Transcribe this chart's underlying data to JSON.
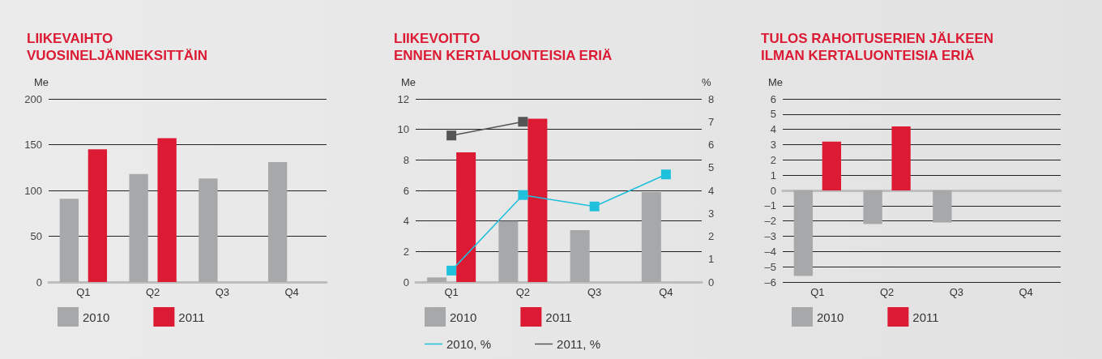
{
  "chart_data": [
    {
      "type": "bar",
      "title": "LIIKEVAIHTO\nVUOSINELJÄNNEKSITTÄIN",
      "ylabel": "Me",
      "categories": [
        "Q1",
        "Q2",
        "Q3",
        "Q4"
      ],
      "series": [
        {
          "name": "2010",
          "color": "#a7a8aa",
          "values": [
            91,
            118,
            113,
            131
          ]
        },
        {
          "name": "2011",
          "color": "#dc1a33",
          "values": [
            145,
            157,
            null,
            null
          ]
        }
      ],
      "ylim": [
        0,
        200
      ],
      "yticks": [
        0,
        50,
        100,
        150,
        200
      ],
      "grid": "y",
      "legend": "bottom left"
    },
    {
      "type": "bar",
      "title": "LIIKEVOITTO\nENNEN KERTALUONTEISIA ERIÄ",
      "ylabel": "Me",
      "y2label": "%",
      "categories": [
        "Q1",
        "Q2",
        "Q3",
        "Q4"
      ],
      "series": [
        {
          "name": "2010",
          "color": "#a7a8aa",
          "values": [
            0.3,
            4.0,
            3.4,
            5.9
          ]
        },
        {
          "name": "2011",
          "color": "#dc1a33",
          "values": [
            8.5,
            10.7,
            null,
            null
          ]
        },
        {
          "name": "2010, %",
          "type": "line",
          "axis": "y2",
          "color": "#1ec0dc",
          "values": [
            0.5,
            3.8,
            3.3,
            4.7
          ]
        },
        {
          "name": "2011, %",
          "type": "line",
          "axis": "y2",
          "color": "#555555",
          "values": [
            6.4,
            7.0,
            null,
            null
          ]
        }
      ],
      "ylim": [
        0,
        12
      ],
      "yticks": [
        0,
        2,
        4,
        6,
        8,
        10,
        12
      ],
      "y2lim": [
        0,
        8
      ],
      "y2ticks": [
        0,
        1,
        2,
        3,
        4,
        5,
        6,
        7,
        8
      ],
      "grid": "y",
      "legend": "bottom left",
      "marker": "square",
      "line_style": "solid"
    },
    {
      "type": "bar",
      "title": "TULOS RAHOITUSERIEN JÄLKEEN\nILMAN KERTALUONTEISIA ERIÄ",
      "ylabel": "Me",
      "categories": [
        "Q1",
        "Q2",
        "Q3",
        "Q4"
      ],
      "series": [
        {
          "name": "2010",
          "color": "#a7a8aa",
          "values": [
            -5.6,
            -2.2,
            -2.1,
            null
          ]
        },
        {
          "name": "2011",
          "color": "#dc1a33",
          "values": [
            3.2,
            4.2,
            null,
            null
          ]
        }
      ],
      "ylim": [
        -6,
        6
      ],
      "yticks": [
        {
          "value": -6,
          "label": "–6"
        },
        {
          "value": -5,
          "label": "–5"
        },
        {
          "value": -4,
          "label": "–4"
        },
        {
          "value": -3,
          "label": "–3"
        },
        {
          "value": -2,
          "label": "–2"
        },
        {
          "value": -1,
          "label": "–1"
        },
        0,
        1,
        2,
        3,
        4,
        5,
        6
      ],
      "grid": "y",
      "legend": "bottom left"
    }
  ]
}
